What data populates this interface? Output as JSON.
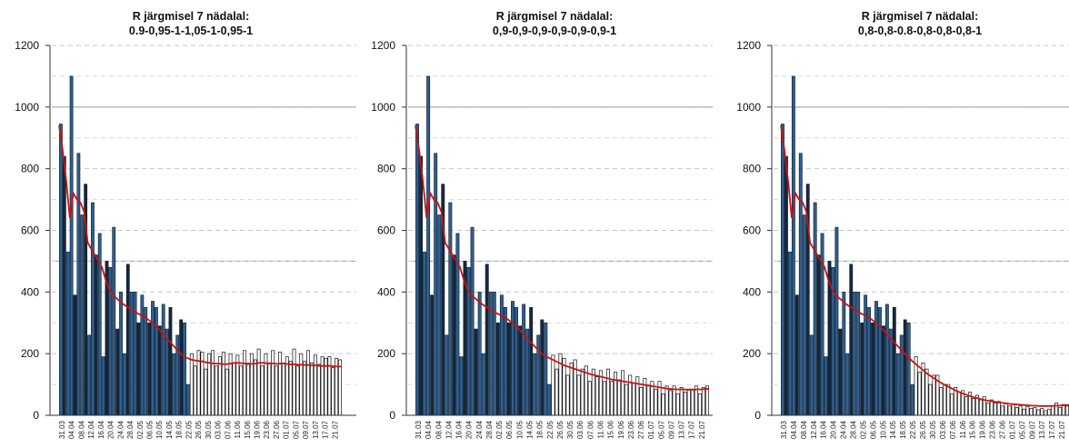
{
  "chart_data": [
    {
      "type": "bar",
      "title": "R järgmisel 7 nädalal:",
      "subtitle": "0.9-0,95-1-1,05-1-0,95-1",
      "ylim": [
        0,
        1200
      ],
      "yticks": [
        0,
        200,
        400,
        600,
        800,
        1000,
        1200
      ],
      "grid": true,
      "xtick_labels": [
        "31.03",
        "04.04",
        "08.04",
        "12.04",
        "16.04",
        "20.04",
        "24.04",
        "28.04",
        "02.05",
        "06.05",
        "10.05",
        "14.05",
        "18.05",
        "22.05",
        "26.05",
        "30.05",
        "03.06",
        "07.06",
        "11.06",
        "15.06",
        "19.06",
        "23.06",
        "27.06",
        "01.07",
        "05.07",
        "09.07",
        "13.07",
        "17.07",
        "21.07"
      ],
      "colors": {
        "observed": "#2e5f8f",
        "observed_alt": "#14283e",
        "forecast": "#ffffff",
        "trend": "#cc1111"
      },
      "observed": [
        945,
        840,
        530,
        1100,
        390,
        850,
        650,
        750,
        260,
        690,
        520,
        590,
        190,
        500,
        480,
        610,
        280,
        400,
        200,
        490,
        400,
        400,
        300,
        390,
        350,
        300,
        370,
        350,
        290,
        360,
        280,
        350,
        200,
        260,
        310,
        300,
        100
      ],
      "forecast": [
        200,
        160,
        210,
        205,
        150,
        200,
        210,
        160,
        190,
        205,
        150,
        200,
        170,
        195,
        160,
        210,
        165,
        200,
        180,
        215,
        160,
        200,
        170,
        210,
        160,
        205,
        170,
        190,
        175,
        215,
        160,
        200,
        175,
        210,
        170,
        195,
        165,
        190,
        185,
        190,
        155,
        185,
        180
      ],
      "trend": [
        940,
        860,
        760,
        640,
        720,
        700,
        690,
        660,
        560,
        540,
        520,
        500,
        480,
        440,
        410,
        390,
        380,
        370,
        360,
        352,
        345,
        338,
        330,
        325,
        318,
        310,
        300,
        290,
        278,
        265,
        250,
        238,
        225,
        212,
        200,
        190,
        185,
        180,
        178,
        176,
        175,
        172,
        170,
        168,
        168,
        167,
        166,
        166,
        168,
        170,
        170,
        169,
        168,
        168,
        167,
        168,
        170,
        170,
        169,
        168,
        168,
        167,
        168,
        168,
        166,
        165,
        165,
        164,
        164,
        163,
        163,
        162,
        162,
        160,
        160,
        160,
        160,
        159,
        158,
        158
      ]
    },
    {
      "type": "bar",
      "title": "R järgmisel 7 nädalal:",
      "subtitle": "0,9-0,9-0,9-0,9-0,9-0,9-1",
      "ylim": [
        0,
        1200
      ],
      "yticks": [
        0,
        200,
        400,
        600,
        800,
        1000,
        1200
      ],
      "grid": true,
      "xtick_labels": [
        "31.03",
        "04.04",
        "08.04",
        "12.04",
        "16.04",
        "20.04",
        "24.04",
        "28.04",
        "02.05",
        "06.05",
        "10.05",
        "14.05",
        "18.05",
        "22.05",
        "26.05",
        "30.05",
        "03.06",
        "07.06",
        "11.06",
        "15.06",
        "19.06",
        "23.06",
        "27.06",
        "01.07",
        "05.07",
        "09.07",
        "13.07",
        "17.07",
        "21.07"
      ],
      "colors": {
        "observed": "#2e5f8f",
        "observed_alt": "#14283e",
        "forecast": "#ffffff",
        "trend": "#cc1111"
      },
      "observed": [
        945,
        840,
        530,
        1100,
        390,
        850,
        650,
        750,
        260,
        690,
        520,
        590,
        190,
        500,
        480,
        610,
        280,
        400,
        200,
        490,
        400,
        400,
        300,
        390,
        350,
        300,
        370,
        350,
        290,
        360,
        280,
        350,
        200,
        260,
        310,
        300,
        100
      ],
      "forecast": [
        195,
        150,
        200,
        185,
        130,
        170,
        180,
        130,
        150,
        160,
        110,
        150,
        125,
        145,
        110,
        150,
        110,
        140,
        115,
        145,
        100,
        130,
        105,
        125,
        90,
        120,
        95,
        110,
        85,
        110,
        70,
        95,
        80,
        95,
        70,
        90,
        75,
        85,
        85,
        95,
        70,
        90,
        95
      ],
      "trend": [
        940,
        860,
        760,
        640,
        720,
        700,
        690,
        660,
        560,
        540,
        520,
        500,
        480,
        440,
        410,
        390,
        380,
        370,
        360,
        352,
        345,
        338,
        330,
        325,
        318,
        310,
        300,
        290,
        278,
        265,
        250,
        238,
        225,
        212,
        200,
        192,
        186,
        180,
        174,
        168,
        162,
        158,
        154,
        150,
        146,
        142,
        138,
        134,
        131,
        128,
        125,
        122,
        119,
        116,
        114,
        112,
        110,
        108,
        106,
        104,
        102,
        100,
        98,
        96,
        94,
        92,
        90,
        88,
        86,
        85,
        84,
        84,
        84,
        83,
        83,
        83,
        84,
        84,
        85,
        86
      ]
    },
    {
      "type": "bar",
      "title": "R järgmisel 7 nädalal:",
      "subtitle": "0,8-0,8-0.8-0,8-0,8-0,8-1",
      "ylim": [
        0,
        1200
      ],
      "yticks": [
        0,
        200,
        400,
        600,
        800,
        1000,
        1200
      ],
      "grid": true,
      "xtick_labels": [
        "31.03",
        "04.04",
        "08.04",
        "12.04",
        "16.04",
        "20.04",
        "24.04",
        "28.04",
        "02.05",
        "06.05",
        "10.05",
        "14.05",
        "18.05",
        "22.05",
        "26.05",
        "30.05",
        "03.06",
        "07.06",
        "11.06",
        "15.06",
        "19.06",
        "23.06",
        "27.06",
        "01.07",
        "05.07",
        "09.07",
        "13.07",
        "17.07",
        "21.07"
      ],
      "colors": {
        "observed": "#2e5f8f",
        "observed_alt": "#14283e",
        "forecast": "#ffffff",
        "trend": "#cc1111"
      },
      "observed": [
        945,
        840,
        530,
        1100,
        390,
        850,
        650,
        750,
        260,
        690,
        520,
        590,
        190,
        500,
        480,
        610,
        280,
        400,
        200,
        490,
        400,
        400,
        300,
        390,
        350,
        300,
        370,
        350,
        290,
        360,
        280,
        350,
        200,
        260,
        310,
        300,
        100
      ],
      "forecast": [
        190,
        140,
        170,
        150,
        100,
        130,
        130,
        90,
        100,
        100,
        70,
        90,
        75,
        80,
        60,
        75,
        55,
        65,
        50,
        60,
        40,
        50,
        40,
        45,
        30,
        40,
        30,
        35,
        25,
        30,
        20,
        28,
        22,
        25,
        18,
        22,
        15,
        20,
        30,
        40,
        25,
        35,
        30
      ],
      "trend": [
        940,
        860,
        760,
        640,
        720,
        700,
        690,
        660,
        560,
        540,
        520,
        500,
        480,
        440,
        410,
        390,
        380,
        370,
        360,
        352,
        345,
        338,
        330,
        325,
        318,
        310,
        300,
        290,
        278,
        265,
        250,
        238,
        225,
        212,
        200,
        188,
        176,
        166,
        156,
        146,
        136,
        128,
        120,
        112,
        105,
        98,
        92,
        86,
        80,
        75,
        70,
        66,
        62,
        58,
        55,
        52,
        49,
        47,
        45,
        43,
        41,
        40,
        38,
        37,
        36,
        35,
        34,
        33,
        32,
        31,
        31,
        30,
        30,
        30,
        30,
        31,
        31,
        32,
        33,
        33
      ]
    }
  ]
}
